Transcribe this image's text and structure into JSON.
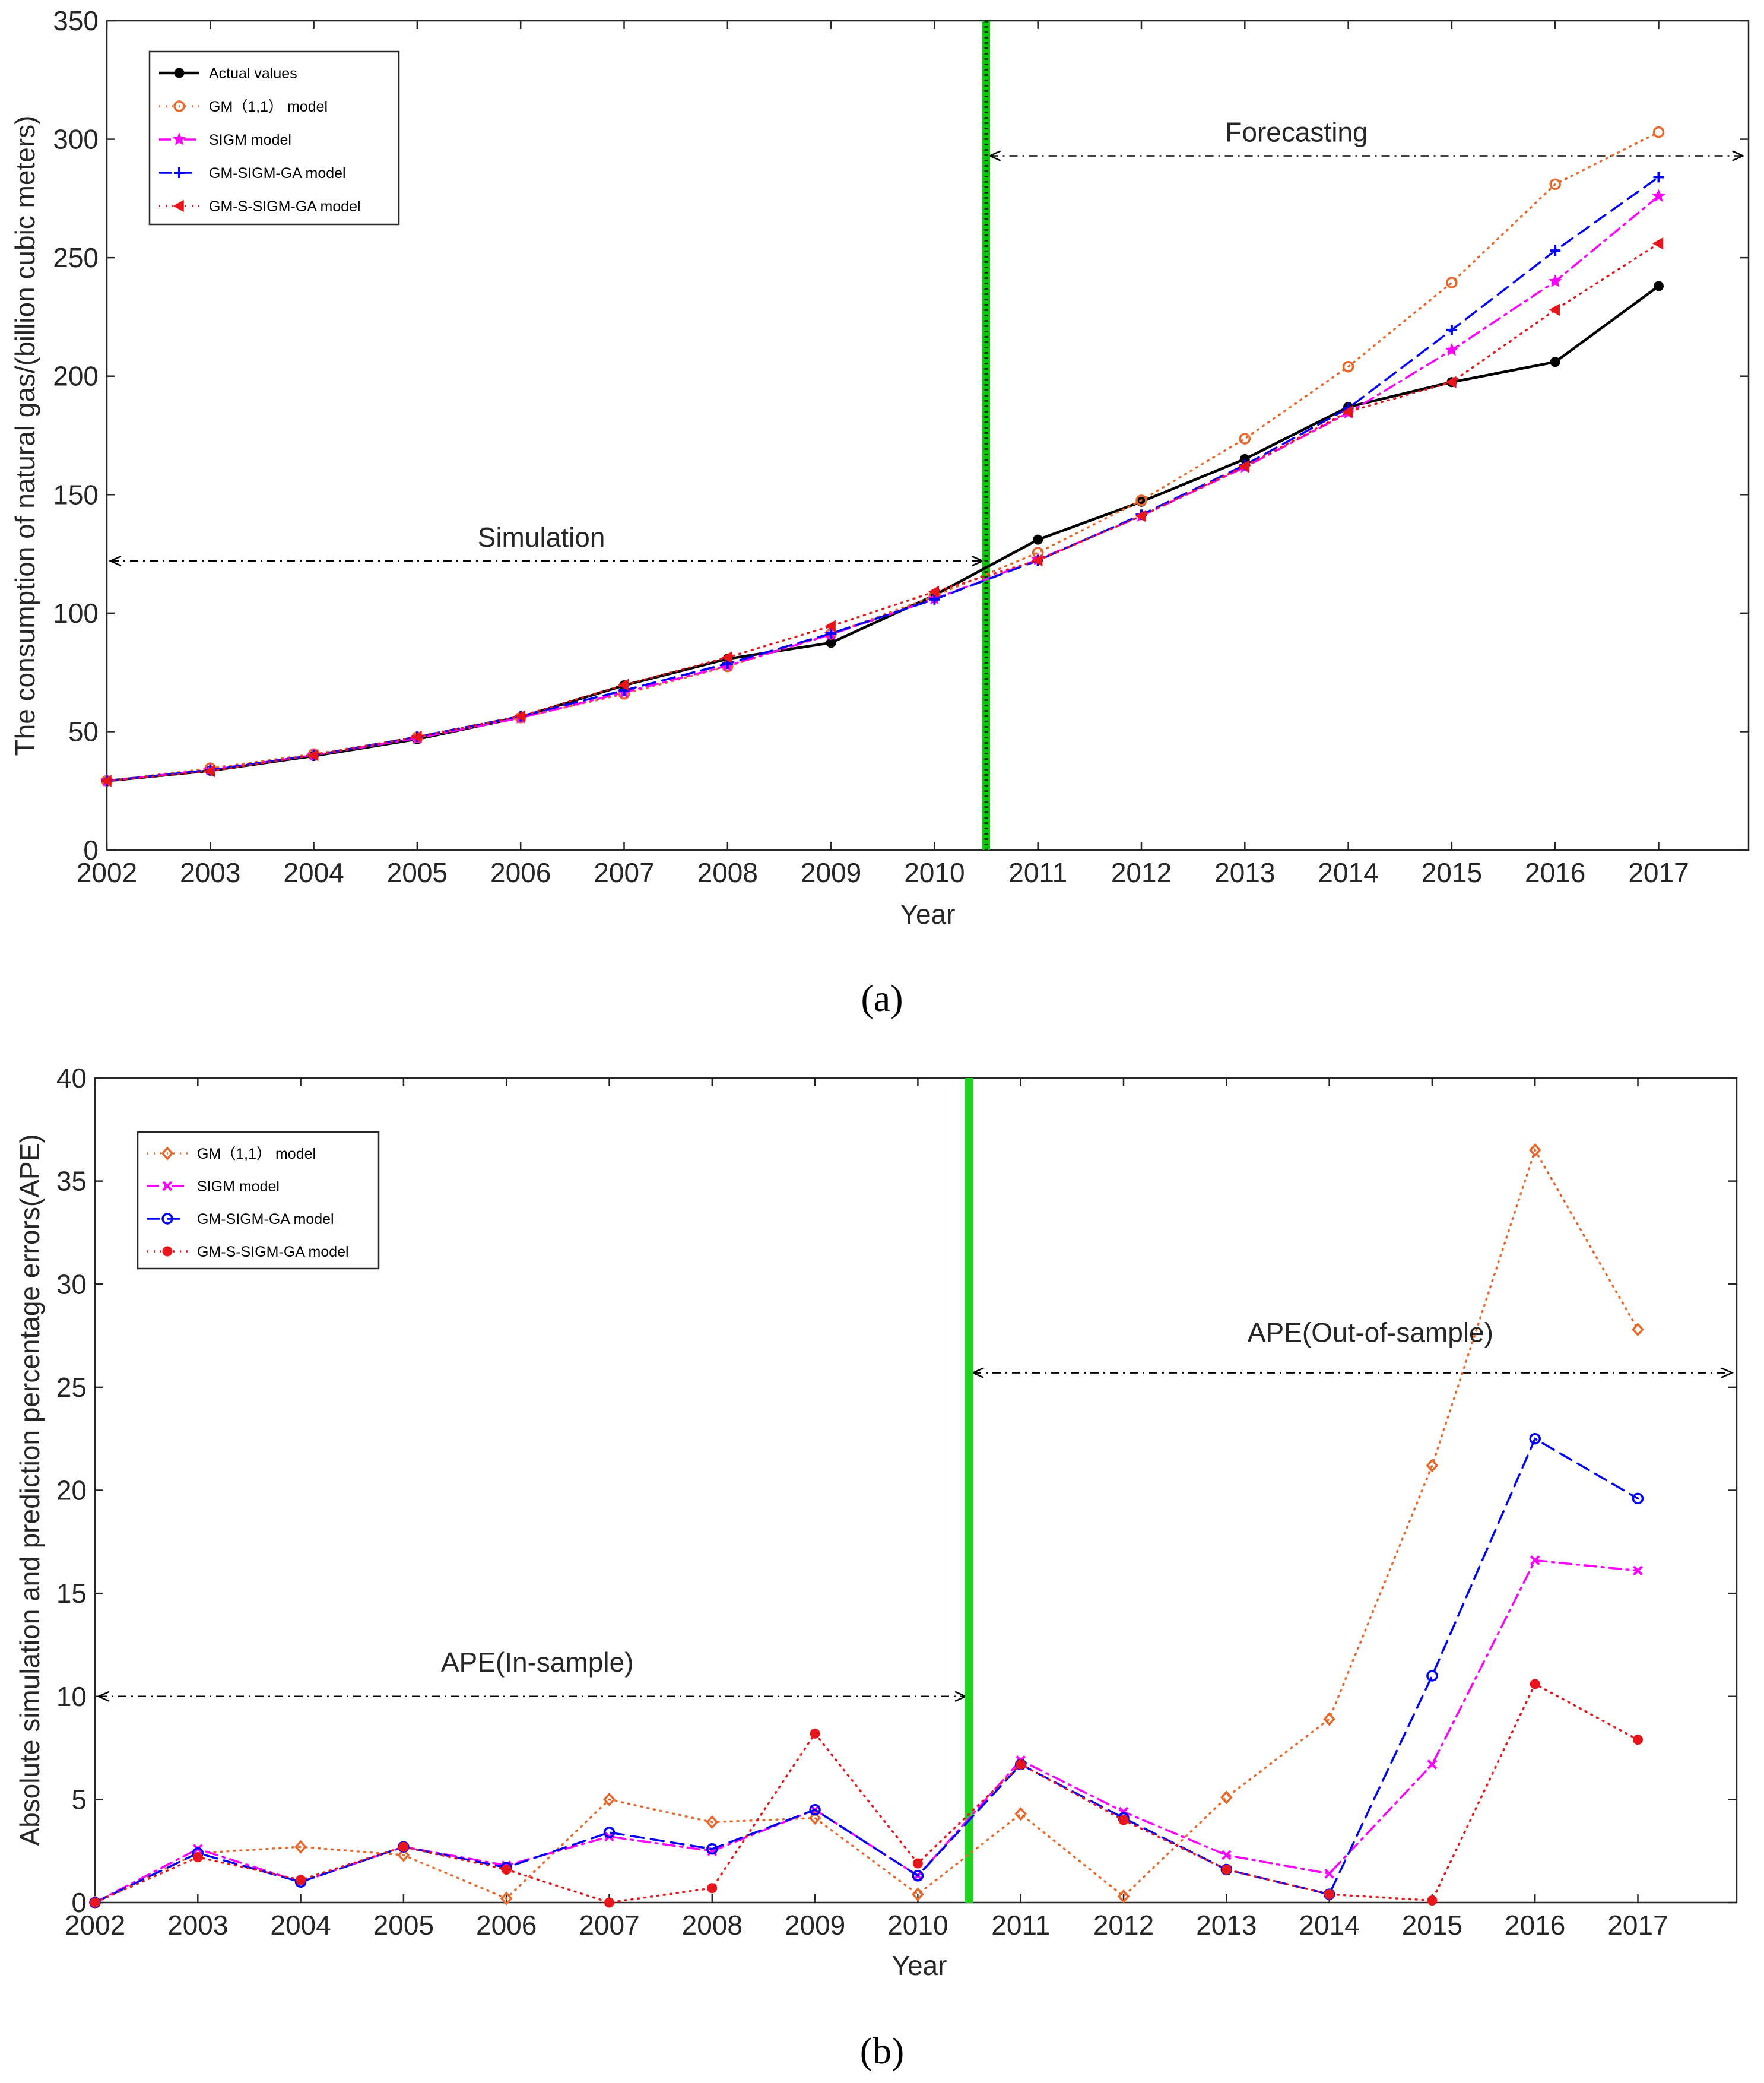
{
  "chart_data": [
    {
      "id": "a",
      "type": "line",
      "caption": "(a)",
      "xlabel": "Year",
      "ylabel": "The consumption of natural gas/(billion cubic meters)",
      "categories": [
        "2002",
        "2003",
        "2004",
        "2005",
        "2006",
        "2007",
        "2008",
        "2009",
        "2010",
        "2011",
        "2012",
        "2013",
        "2014",
        "2015",
        "2016",
        "2017"
      ],
      "ylim": [
        0,
        350
      ],
      "yticks": [
        "0",
        "50",
        "100",
        "150",
        "200",
        "250",
        "300",
        "350"
      ],
      "divider_year": 2010.5,
      "annotations": [
        {
          "text": "Simulation",
          "from": 2002,
          "to": 2010.5,
          "y": 122,
          "label_x": 2006.2,
          "label_y": 128
        },
        {
          "text": "Forecasting",
          "from": 2010.5,
          "to": 2017.85,
          "y": 293,
          "label_x": 2013.5,
          "label_y": 299
        }
      ],
      "legend": {
        "position": "top-left"
      },
      "series": [
        {
          "name": "Actual values",
          "color": "#000000",
          "marker": "dot",
          "dash": "solid",
          "values": [
            29.2,
            33.5,
            39.7,
            46.8,
            56.1,
            69.5,
            80.7,
            87.5,
            107.5,
            131,
            147,
            165,
            187,
            197.5,
            206,
            238
          ]
        },
        {
          "name": "GM（1,1） model",
          "color": "#e8672a",
          "marker": "circle",
          "dash": "dot",
          "values": [
            29.2,
            34.5,
            40.5,
            47.6,
            55.9,
            65.9,
            77.5,
            91.2,
            107.2,
            125.5,
            147.6,
            173.6,
            204,
            239.5,
            281,
            303
          ]
        },
        {
          "name": "SIGM model",
          "color": "#ff00ff",
          "marker": "star",
          "dash": "dashdot",
          "values": [
            29.2,
            33.9,
            40,
            47.2,
            55.8,
            66.5,
            77.8,
            91,
            106,
            122.6,
            141,
            161.6,
            184.5,
            211,
            240,
            276
          ]
        },
        {
          "name": "GM-SIGM-GA model",
          "color": "#0000ff",
          "marker": "plus",
          "dash": "dash",
          "values": [
            29.2,
            33.8,
            40,
            47.8,
            56.5,
            67.4,
            78.7,
            91.4,
            105.8,
            122.2,
            141.5,
            162.5,
            186.5,
            219.5,
            253,
            284
          ]
        },
        {
          "name": "GM-S-SIGM-GA model",
          "color": "#e8151b",
          "marker": "triangle",
          "dash": "dot",
          "values": [
            29.2,
            33.3,
            40,
            47.8,
            56.5,
            69.7,
            81.3,
            94.5,
            109,
            122.3,
            141,
            162,
            185,
            197.5,
            228,
            256
          ]
        }
      ]
    },
    {
      "id": "b",
      "type": "line",
      "caption": "(b)",
      "xlabel": "Year",
      "ylabel": "Absolute simulation and prediction percentage errors(APE)",
      "categories": [
        "2002",
        "2003",
        "2004",
        "2005",
        "2006",
        "2007",
        "2008",
        "2009",
        "2010",
        "2011",
        "2012",
        "2013",
        "2014",
        "2015",
        "2016",
        "2017"
      ],
      "ylim": [
        0,
        40
      ],
      "yticks": [
        "0",
        "5",
        "10",
        "15",
        "20",
        "25",
        "30",
        "35",
        "40"
      ],
      "divider_year": 2010.5,
      "annotations": [
        {
          "text": "APE(In-sample)",
          "from": 2002,
          "to": 2010.5,
          "y": 10,
          "label_x": 2006.3,
          "label_y": 11.2
        },
        {
          "text": "APE(Out-of-sample)",
          "from": 2010.5,
          "to": 2017.95,
          "y": 25.7,
          "label_x": 2014.4,
          "label_y": 27.2
        }
      ],
      "legend": {
        "position": "top-left"
      },
      "series": [
        {
          "name": "GM（1,1） model",
          "color": "#e8672a",
          "marker": "diamond",
          "dash": "dot",
          "values": [
            0,
            2.4,
            2.7,
            2.3,
            0.2,
            5,
            3.9,
            4.1,
            0.4,
            4.3,
            0.3,
            5.1,
            8.9,
            21.2,
            36.5,
            27.8
          ]
        },
        {
          "name": "SIGM model",
          "color": "#ff00ff",
          "marker": "x",
          "dash": "dashdot",
          "values": [
            0,
            2.6,
            1,
            2.7,
            1.8,
            3.2,
            2.5,
            4.5,
            1.3,
            6.9,
            4.4,
            2.3,
            1.4,
            6.7,
            16.6,
            16.1
          ]
        },
        {
          "name": "GM-SIGM-GA model",
          "color": "#0000ff",
          "marker": "circle",
          "dash": "dash",
          "values": [
            0,
            2.4,
            1,
            2.7,
            1.7,
            3.4,
            2.6,
            4.5,
            1.3,
            6.7,
            4.1,
            1.6,
            0.4,
            11,
            22.5,
            19.6
          ]
        },
        {
          "name": "GM-S-SIGM-GA model",
          "color": "#e8151b",
          "marker": "dot",
          "dash": "dot",
          "values": [
            0,
            2.2,
            1.1,
            2.7,
            1.6,
            0,
            0.7,
            8.2,
            1.9,
            6.7,
            4,
            1.6,
            0.4,
            0.1,
            10.6,
            7.9
          ]
        }
      ]
    }
  ]
}
